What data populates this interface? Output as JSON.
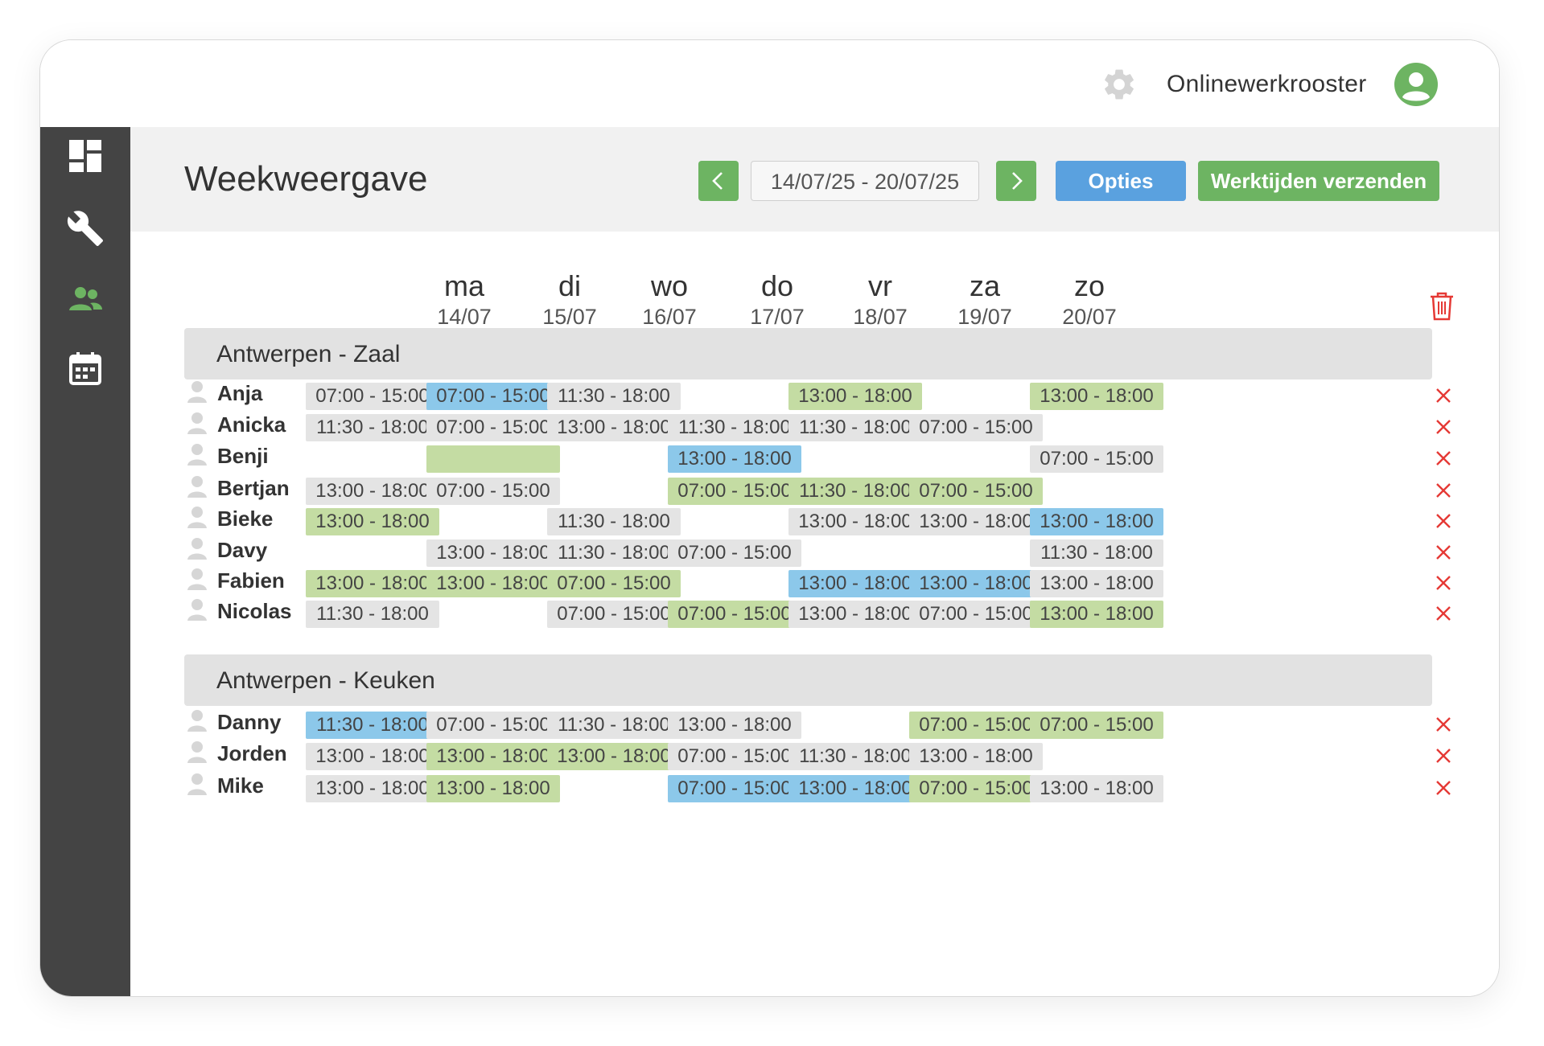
{
  "header": {
    "brand": "Onlinewerkrooster"
  },
  "page": {
    "title": "Weekweergave",
    "date_range": "14/07/25 - 20/07/25",
    "options_label": "Opties",
    "send_label": "Werktijden verzenden"
  },
  "colors": {
    "green": "#6db462",
    "blue": "#5aa1df",
    "sidebar": "#444444",
    "active_icon": "#6db462",
    "delete": "#e53935"
  },
  "sidebar": {
    "items": [
      {
        "icon": "dashboard-icon"
      },
      {
        "icon": "wrench-icon"
      },
      {
        "icon": "users-icon"
      },
      {
        "icon": "calendar-icon"
      }
    ]
  },
  "days": [
    {
      "name": "ma",
      "date": "14/07"
    },
    {
      "name": "di",
      "date": "15/07"
    },
    {
      "name": "wo",
      "date": "16/07"
    },
    {
      "name": "do",
      "date": "17/07"
    },
    {
      "name": "vr",
      "date": "18/07"
    },
    {
      "name": "za",
      "date": "19/07"
    },
    {
      "name": "zo",
      "date": "20/07"
    }
  ],
  "groups": [
    {
      "name": "Antwerpen - Zaal",
      "rows": [
        {
          "name": "Anja",
          "shifts": [
            {
              "t": "07:00 - 15:00",
              "c": "grey"
            },
            {
              "t": "07:00 - 15:00",
              "c": "blue"
            },
            {
              "t": "11:30 - 18:00",
              "c": "grey"
            },
            null,
            {
              "t": "13:00 - 18:00",
              "c": "green"
            },
            null,
            {
              "t": "13:00 - 18:00",
              "c": "green"
            }
          ]
        },
        {
          "name": "Anicka",
          "shifts": [
            {
              "t": "11:30 - 18:00",
              "c": "grey"
            },
            {
              "t": "07:00 - 15:00",
              "c": "grey"
            },
            {
              "t": "13:00 - 18:00",
              "c": "grey"
            },
            {
              "t": "11:30 - 18:00",
              "c": "grey"
            },
            {
              "t": "11:30 - 18:00",
              "c": "grey"
            },
            {
              "t": "07:00 - 15:00",
              "c": "grey"
            },
            null
          ]
        },
        {
          "name": "Benji",
          "shifts": [
            null,
            {
              "t": "",
              "c": "green"
            },
            null,
            {
              "t": "13:00 - 18:00",
              "c": "blue"
            },
            null,
            null,
            {
              "t": "07:00 - 15:00",
              "c": "grey"
            }
          ]
        },
        {
          "name": "Bertjan",
          "shifts": [
            {
              "t": "13:00 - 18:00",
              "c": "grey"
            },
            {
              "t": "07:00 - 15:00",
              "c": "grey"
            },
            null,
            {
              "t": "07:00 - 15:00",
              "c": "green"
            },
            {
              "t": "11:30 - 18:00",
              "c": "green"
            },
            {
              "t": "07:00 - 15:00",
              "c": "green"
            },
            null
          ]
        },
        {
          "name": "Bieke",
          "shifts": [
            {
              "t": "13:00 - 18:00",
              "c": "green"
            },
            null,
            {
              "t": "11:30 - 18:00",
              "c": "grey"
            },
            null,
            {
              "t": "13:00 - 18:00",
              "c": "grey"
            },
            {
              "t": "13:00 - 18:00",
              "c": "grey"
            },
            {
              "t": "13:00 - 18:00",
              "c": "blue"
            }
          ]
        },
        {
          "name": "Davy",
          "shifts": [
            null,
            {
              "t": "13:00 - 18:00",
              "c": "grey"
            },
            {
              "t": "11:30 - 18:00",
              "c": "grey"
            },
            {
              "t": "07:00 - 15:00",
              "c": "grey"
            },
            null,
            null,
            {
              "t": "11:30 - 18:00",
              "c": "grey"
            }
          ]
        },
        {
          "name": "Fabien",
          "shifts": [
            {
              "t": "13:00 - 18:00",
              "c": "green"
            },
            {
              "t": "13:00 - 18:00",
              "c": "green"
            },
            {
              "t": "07:00 - 15:00",
              "c": "green"
            },
            null,
            {
              "t": "13:00 - 18:00",
              "c": "blue"
            },
            {
              "t": "13:00 - 18:00",
              "c": "blue"
            },
            {
              "t": "13:00 - 18:00",
              "c": "grey"
            }
          ]
        },
        {
          "name": "Nicolas",
          "shifts": [
            {
              "t": "11:30 - 18:00",
              "c": "grey"
            },
            null,
            {
              "t": "07:00 - 15:00",
              "c": "grey"
            },
            {
              "t": "07:00 - 15:00",
              "c": "green"
            },
            {
              "t": "13:00 - 18:00",
              "c": "grey"
            },
            {
              "t": "07:00 - 15:00",
              "c": "grey"
            },
            {
              "t": "13:00 - 18:00",
              "c": "green"
            }
          ]
        }
      ]
    },
    {
      "name": "Antwerpen - Keuken",
      "rows": [
        {
          "name": "Danny",
          "shifts": [
            {
              "t": "11:30 - 18:00",
              "c": "blue"
            },
            {
              "t": "07:00 - 15:00",
              "c": "grey"
            },
            {
              "t": "11:30 - 18:00",
              "c": "grey"
            },
            {
              "t": "13:00 - 18:00",
              "c": "grey"
            },
            null,
            {
              "t": "07:00 - 15:00",
              "c": "green"
            },
            {
              "t": "07:00 - 15:00",
              "c": "green"
            }
          ]
        },
        {
          "name": "Jorden",
          "shifts": [
            {
              "t": "13:00 - 18:00",
              "c": "grey"
            },
            {
              "t": "13:00 - 18:00",
              "c": "green"
            },
            {
              "t": "13:00 - 18:00",
              "c": "green"
            },
            {
              "t": "07:00 - 15:00",
              "c": "grey"
            },
            {
              "t": "11:30 - 18:00",
              "c": "grey"
            },
            {
              "t": "13:00 - 18:00",
              "c": "grey"
            },
            null
          ]
        },
        {
          "name": "Mike",
          "shifts": [
            {
              "t": "13:00 - 18:00",
              "c": "grey"
            },
            {
              "t": "13:00 - 18:00",
              "c": "green"
            },
            null,
            {
              "t": "07:00 - 15:00",
              "c": "blue"
            },
            {
              "t": "13:00 - 18:00",
              "c": "blue"
            },
            {
              "t": "07:00 - 15:00",
              "c": "green"
            },
            {
              "t": "13:00 - 18:00",
              "c": "grey"
            }
          ]
        }
      ]
    }
  ]
}
